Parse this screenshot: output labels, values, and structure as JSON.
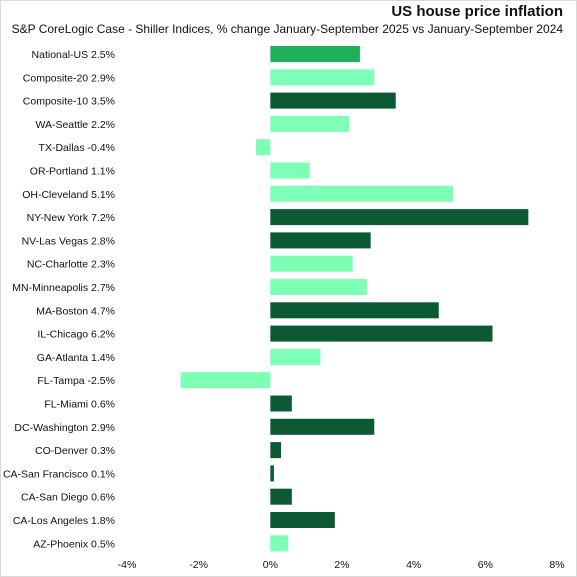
{
  "chart_data": {
    "type": "bar",
    "orientation": "horizontal",
    "title": "US house price inflation",
    "subtitle": "S&P CoreLogic Case - Shiller Indices, % change January-September  2025 vs January-September  2024",
    "categories": [
      "National-US 2.5%",
      "Composite-20 2.9%",
      "Composite-10 3.5%",
      "WA-Seattle 2.2%",
      "TX-Dallas -0.4%",
      "OR-Portland 1.1%",
      "OH-Cleveland 5.1%",
      "NY-New York 7.2%",
      "NV-Las Vegas 2.8%",
      "NC-Charlotte 2.3%",
      "MN-Minneapolis 2.7%",
      "MA-Boston 4.7%",
      "IL-Chicago 6.2%",
      "GA-Atlanta 1.4%",
      "FL-Tampa -2.5%",
      "FL-Miami 0.6%",
      "DC-Washington 2.9%",
      "CO-Denver 0.3%",
      "CA-San Francisco 0.1%",
      "CA-San Diego 0.6%",
      "CA-Los Angeles 1.8%",
      "AZ-Phoenix 0.5%"
    ],
    "values": [
      2.5,
      2.9,
      3.5,
      2.2,
      -0.4,
      1.1,
      5.1,
      7.2,
      2.8,
      2.3,
      2.7,
      4.7,
      6.2,
      1.4,
      -2.5,
      0.6,
      2.9,
      0.3,
      0.1,
      0.6,
      1.8,
      0.5
    ],
    "bar_colors": [
      "#1fb15a",
      "#7dffb6",
      "#0b5a33",
      "#7dffb6",
      "#7dffb6",
      "#7dffb6",
      "#7dffb6",
      "#0b5a33",
      "#0b5a33",
      "#7dffb6",
      "#7dffb6",
      "#0b5a33",
      "#0b5a33",
      "#7dffb6",
      "#7dffb6",
      "#0b5a33",
      "#0b5a33",
      "#0b5a33",
      "#0b5a33",
      "#0b5a33",
      "#0b5a33",
      "#7dffb6"
    ],
    "xlim": [
      -4,
      8
    ],
    "xticks": [
      -4,
      -2,
      0,
      2,
      4,
      6,
      8
    ],
    "xtick_labels": [
      "-4%",
      "-2%",
      "0%",
      "2%",
      "4%",
      "6%",
      "8%"
    ],
    "xlabel": "",
    "ylabel": "",
    "grid": false,
    "legend": "none"
  }
}
